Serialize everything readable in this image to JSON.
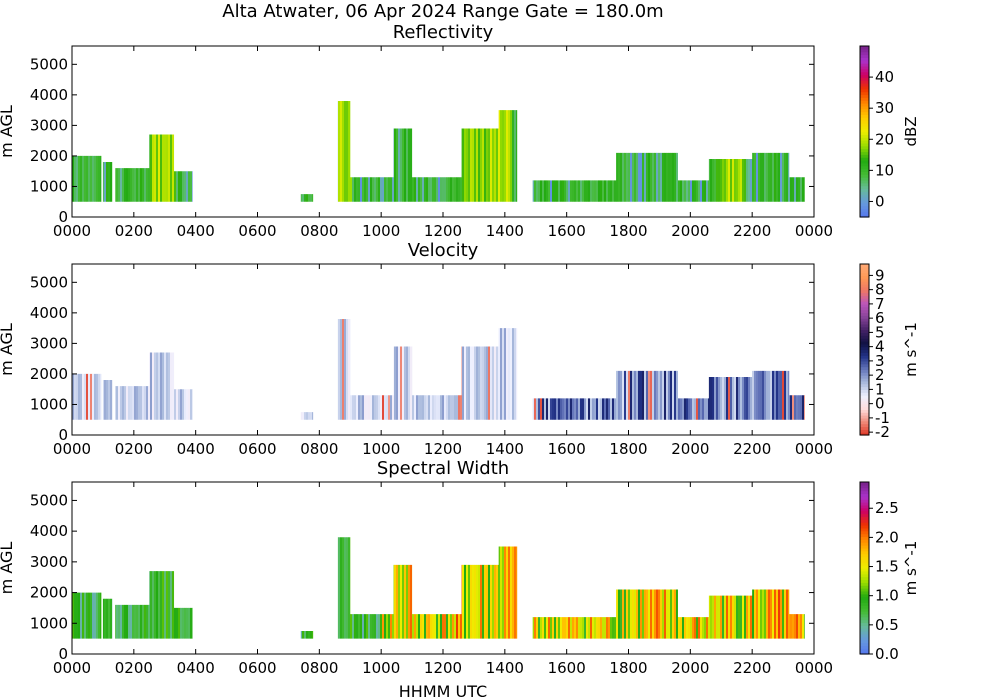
{
  "figure": {
    "suptitle": "Alta Atwater, 06 Apr 2024 Range Gate = 180.0m",
    "xlabel": "HHMM UTC"
  },
  "chart_data": [
    {
      "type": "heatmap",
      "title": "Reflectivity",
      "ylabel": "m AGL",
      "xlim": [
        0,
        2400
      ],
      "ylim": [
        0,
        5600
      ],
      "xticks": [
        "0000",
        "0200",
        "0400",
        "0600",
        "0800",
        "1000",
        "1200",
        "1400",
        "1600",
        "1800",
        "2000",
        "2200",
        "0000"
      ],
      "yticks": [
        "0",
        "1000",
        "2000",
        "3000",
        "4000",
        "5000"
      ],
      "colorbar": {
        "label": "dBZ",
        "min": -5,
        "max": 50,
        "ticks": [
          "0",
          "10",
          "20",
          "30",
          "40"
        ],
        "tick_values": [
          0,
          10,
          20,
          30,
          40
        ],
        "colors": [
          "#5577ee",
          "#6699dd",
          "#66bb99",
          "#44bb33",
          "#22aa11",
          "#99dd00",
          "#eeee00",
          "#ffcc00",
          "#ff8800",
          "#ee3300",
          "#cc0066",
          "#aa33cc",
          "#772288"
        ]
      },
      "echo_segments": [
        {
          "x0": 0,
          "x1": 95,
          "base": 500,
          "top": 2000
        },
        {
          "x0": 100,
          "x1": 130,
          "base": 500,
          "top": 1800
        },
        {
          "x0": 140,
          "x1": 250,
          "base": 500,
          "top": 1600
        },
        {
          "x0": 250,
          "x1": 330,
          "base": 500,
          "top": 2700
        },
        {
          "x0": 330,
          "x1": 390,
          "base": 500,
          "top": 1500
        },
        {
          "x0": 740,
          "x1": 780,
          "base": 500,
          "top": 750
        },
        {
          "x0": 860,
          "x1": 900,
          "base": 500,
          "top": 3800
        },
        {
          "x0": 900,
          "x1": 1040,
          "base": 500,
          "top": 1300
        },
        {
          "x0": 1040,
          "x1": 1100,
          "base": 500,
          "top": 2900
        },
        {
          "x0": 1100,
          "x1": 1260,
          "base": 500,
          "top": 1300
        },
        {
          "x0": 1260,
          "x1": 1380,
          "base": 500,
          "top": 2900
        },
        {
          "x0": 1380,
          "x1": 1440,
          "base": 500,
          "top": 3500
        },
        {
          "x0": 1490,
          "x1": 1760,
          "base": 500,
          "top": 1200
        },
        {
          "x0": 1760,
          "x1": 1960,
          "base": 500,
          "top": 2100
        },
        {
          "x0": 1960,
          "x1": 2060,
          "base": 500,
          "top": 1200
        },
        {
          "x0": 2060,
          "x1": 2200,
          "base": 500,
          "top": 1900
        },
        {
          "x0": 2200,
          "x1": 2320,
          "base": 500,
          "top": 2100
        },
        {
          "x0": 2320,
          "x1": 2370,
          "base": 500,
          "top": 1300
        }
      ]
    },
    {
      "type": "heatmap",
      "title": "Velocity",
      "ylabel": "m AGL",
      "xlim": [
        0,
        2400
      ],
      "ylim": [
        0,
        5600
      ],
      "xticks": [
        "0000",
        "0200",
        "0400",
        "0600",
        "0800",
        "1000",
        "1200",
        "1400",
        "1600",
        "1800",
        "2000",
        "2200",
        "0000"
      ],
      "yticks": [
        "0",
        "1000",
        "2000",
        "3000",
        "4000",
        "5000"
      ],
      "colorbar": {
        "label": "m s^-1",
        "min": -2.2,
        "max": 9.8,
        "ticks": [
          "-2",
          "-1",
          "0",
          "1",
          "2",
          "3",
          "4",
          "5",
          "6",
          "7",
          "8",
          "9"
        ],
        "tick_values": [
          -2,
          -1,
          0,
          1,
          2,
          3,
          4,
          5,
          6,
          7,
          8,
          9
        ],
        "colors": [
          "#dd3322",
          "#ee8877",
          "#ffdddd",
          "#eef0ff",
          "#aabbdd",
          "#6677bb",
          "#223388",
          "#111144",
          "#442266",
          "#884499",
          "#bb55bb",
          "#ee7766",
          "#ff9955",
          "#ffaa77"
        ]
      },
      "echo_segments": [
        {
          "x0": 0,
          "x1": 95,
          "base": 500,
          "top": 2000
        },
        {
          "x0": 100,
          "x1": 130,
          "base": 500,
          "top": 1800
        },
        {
          "x0": 140,
          "x1": 250,
          "base": 500,
          "top": 1600
        },
        {
          "x0": 250,
          "x1": 330,
          "base": 500,
          "top": 2700
        },
        {
          "x0": 330,
          "x1": 390,
          "base": 500,
          "top": 1500
        },
        {
          "x0": 740,
          "x1": 780,
          "base": 500,
          "top": 750
        },
        {
          "x0": 860,
          "x1": 900,
          "base": 500,
          "top": 3800
        },
        {
          "x0": 900,
          "x1": 1040,
          "base": 500,
          "top": 1300
        },
        {
          "x0": 1040,
          "x1": 1100,
          "base": 500,
          "top": 2900
        },
        {
          "x0": 1100,
          "x1": 1260,
          "base": 500,
          "top": 1300
        },
        {
          "x0": 1260,
          "x1": 1380,
          "base": 500,
          "top": 2900
        },
        {
          "x0": 1380,
          "x1": 1440,
          "base": 500,
          "top": 3500
        },
        {
          "x0": 1490,
          "x1": 1760,
          "base": 500,
          "top": 1200
        },
        {
          "x0": 1760,
          "x1": 1960,
          "base": 500,
          "top": 2100
        },
        {
          "x0": 1960,
          "x1": 2060,
          "base": 500,
          "top": 1200
        },
        {
          "x0": 2060,
          "x1": 2200,
          "base": 500,
          "top": 1900
        },
        {
          "x0": 2200,
          "x1": 2320,
          "base": 500,
          "top": 2100
        },
        {
          "x0": 2320,
          "x1": 2370,
          "base": 500,
          "top": 1300
        }
      ]
    },
    {
      "type": "heatmap",
      "title": "Spectral Width",
      "ylabel": "m AGL",
      "xlim": [
        0,
        2400
      ],
      "ylim": [
        0,
        5600
      ],
      "xticks": [
        "0000",
        "0200",
        "0400",
        "0600",
        "0800",
        "1000",
        "1200",
        "1400",
        "1600",
        "1800",
        "2000",
        "2200",
        "0000"
      ],
      "yticks": [
        "0",
        "1000",
        "2000",
        "3000",
        "4000",
        "5000"
      ],
      "colorbar": {
        "label": "m s^-1",
        "min": 0.0,
        "max": 2.95,
        "ticks": [
          "0.0",
          "0.5",
          "1.0",
          "1.5",
          "2.0",
          "2.5"
        ],
        "tick_values": [
          0.0,
          0.5,
          1.0,
          1.5,
          2.0,
          2.5
        ],
        "colors": [
          "#5577ee",
          "#6699dd",
          "#66bb99",
          "#44bb33",
          "#22aa11",
          "#99dd00",
          "#eeee00",
          "#ffcc00",
          "#ff8800",
          "#ee3300",
          "#cc0066",
          "#aa33cc",
          "#772288"
        ]
      },
      "echo_segments": [
        {
          "x0": 0,
          "x1": 95,
          "base": 500,
          "top": 2000
        },
        {
          "x0": 100,
          "x1": 130,
          "base": 500,
          "top": 1800
        },
        {
          "x0": 140,
          "x1": 250,
          "base": 500,
          "top": 1600
        },
        {
          "x0": 250,
          "x1": 330,
          "base": 500,
          "top": 2700
        },
        {
          "x0": 330,
          "x1": 390,
          "base": 500,
          "top": 1500
        },
        {
          "x0": 740,
          "x1": 780,
          "base": 500,
          "top": 750
        },
        {
          "x0": 860,
          "x1": 900,
          "base": 500,
          "top": 3800
        },
        {
          "x0": 900,
          "x1": 1040,
          "base": 500,
          "top": 1300
        },
        {
          "x0": 1040,
          "x1": 1100,
          "base": 500,
          "top": 2900
        },
        {
          "x0": 1100,
          "x1": 1260,
          "base": 500,
          "top": 1300
        },
        {
          "x0": 1260,
          "x1": 1380,
          "base": 500,
          "top": 2900
        },
        {
          "x0": 1380,
          "x1": 1440,
          "base": 500,
          "top": 3500
        },
        {
          "x0": 1490,
          "x1": 1760,
          "base": 500,
          "top": 1200
        },
        {
          "x0": 1760,
          "x1": 1960,
          "base": 500,
          "top": 2100
        },
        {
          "x0": 1960,
          "x1": 2060,
          "base": 500,
          "top": 1200
        },
        {
          "x0": 2060,
          "x1": 2200,
          "base": 500,
          "top": 1900
        },
        {
          "x0": 2200,
          "x1": 2320,
          "base": 500,
          "top": 2100
        },
        {
          "x0": 2320,
          "x1": 2370,
          "base": 500,
          "top": 1300
        }
      ]
    }
  ]
}
